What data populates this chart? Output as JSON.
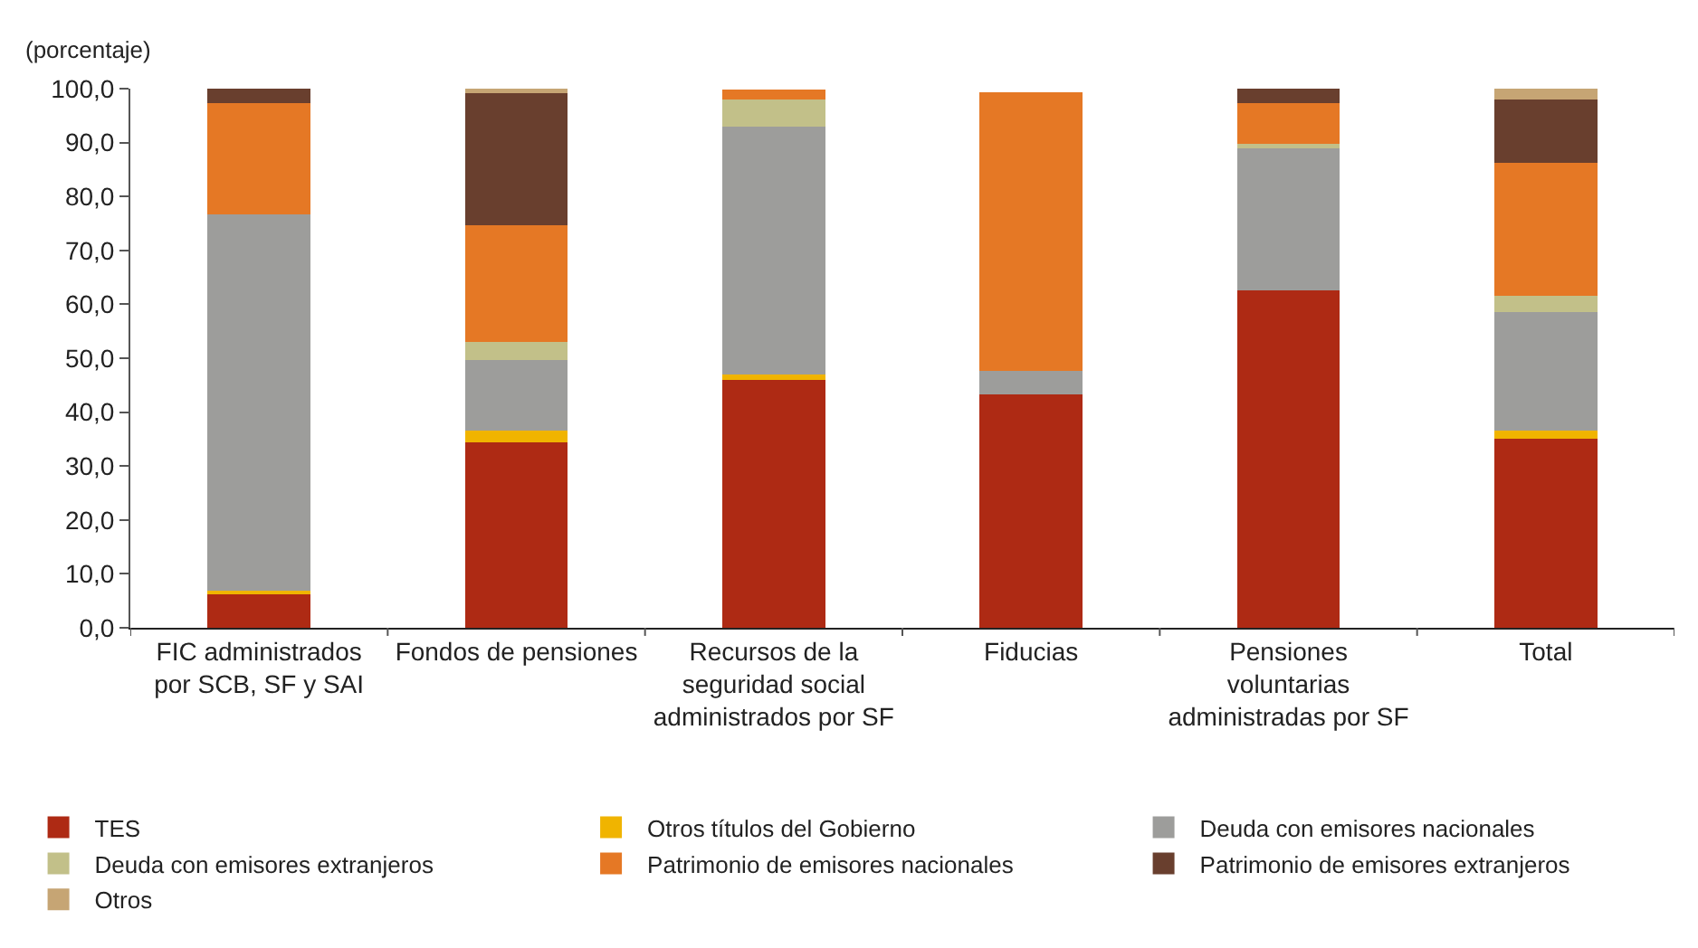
{
  "chart_data": {
    "type": "bar",
    "stacked": true,
    "ylabel": "(porcentaje)",
    "categories": [
      "FIC administrados por SCB, SF y SAI",
      "Fondos de pensiones",
      "Recursos de la seguridad social administrados por SF",
      "Fiducias",
      "Pensiones voluntarias administradas por SF",
      "Total"
    ],
    "series": [
      {
        "name": "TES",
        "color": "#ae2a14",
        "values": [
          6.2,
          34.4,
          46.0,
          43.3,
          62.6,
          35.0
        ]
      },
      {
        "name": "Otros títulos del Gobierno",
        "color": "#f0b400",
        "values": [
          0.7,
          2.1,
          0.9,
          null,
          null,
          1.5
        ]
      },
      {
        "name": "Deuda con emisores nacionales",
        "color": "#9d9d9b",
        "values": [
          69.7,
          13.1,
          46.1,
          4.3,
          26.3,
          22.1
        ]
      },
      {
        "name": "Deuda con emisores extranjeros",
        "color": "#c2c089",
        "values": [
          null,
          3.5,
          5.0,
          null,
          0.8,
          2.9
        ]
      },
      {
        "name": "Patrimonio de emisores nacionales",
        "color": "#e57825",
        "values": [
          20.8,
          21.5,
          1.9,
          51.8,
          7.7,
          24.7
        ]
      },
      {
        "name": "Patrimonio de emisores extranjeros",
        "color": "#693f2e",
        "values": [
          2.6,
          24.6,
          null,
          null,
          2.6,
          11.8
        ]
      },
      {
        "name": "Otros",
        "color": "#c6a574",
        "values": [
          null,
          0.9,
          null,
          null,
          null,
          2.0
        ]
      }
    ],
    "ylim": [
      0,
      100
    ],
    "yticks": [
      {
        "value": 0,
        "label": "0,0"
      },
      {
        "value": 10,
        "label": "10,0"
      },
      {
        "value": 20,
        "label": "20,0"
      },
      {
        "value": 30,
        "label": "30,0"
      },
      {
        "value": 40,
        "label": "40,0"
      },
      {
        "value": 50,
        "label": "50,0"
      },
      {
        "value": 60,
        "label": "60,0"
      },
      {
        "value": 70,
        "label": "70,0"
      },
      {
        "value": 80,
        "label": "80,0"
      },
      {
        "value": 90,
        "label": "90,0"
      },
      {
        "value": 100,
        "label": "100,0"
      }
    ],
    "grid": false,
    "legend": "bottom"
  }
}
